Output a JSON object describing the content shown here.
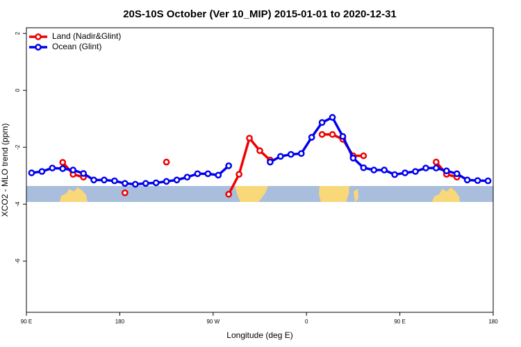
{
  "chart_data": {
    "type": "line",
    "title": "20S-10S October (Ver 10_MIP)   2015-01-01 to 2020-12-31",
    "x_label": "Longitude (deg E)",
    "y_label": "XCO2 - MLO trend (ppm)",
    "xlim": [
      90,
      540
    ],
    "xticks": [
      {
        "value": 90,
        "label": "90 E"
      },
      180,
      {
        "value": 270,
        "label": "90 W"
      },
      {
        "value": 360,
        "label": "0"
      },
      {
        "value": 450,
        "label": "90 E"
      },
      {
        "value": 540,
        "label": "180"
      }
    ],
    "ylim": [
      -7.8,
      2.2
    ],
    "yticks": [
      2,
      0,
      -2,
      -4,
      -6
    ],
    "legend": "upper left",
    "series": [
      {
        "name": "Land (Nadir&Glint)",
        "color": "#ee0000",
        "x": [
          125,
          135,
          145,
          155,
          185,
          195,
          225,
          235,
          285,
          295,
          305,
          315,
          325,
          335,
          375,
          385,
          395,
          405,
          415,
          425,
          485,
          495,
          505
        ],
        "values": [
          -2.53,
          -2.95,
          -3.05,
          null,
          -3.6,
          null,
          -2.52,
          null,
          -3.65,
          -2.95,
          -1.68,
          -2.12,
          -2.45,
          null,
          -1.55,
          -1.55,
          -1.72,
          -2.3,
          -2.3,
          null,
          -2.52,
          -2.95,
          -3.05
        ]
      },
      {
        "name": "Ocean (Glint)",
        "color": "#0000ee",
        "x": [
          95,
          105,
          115,
          125,
          135,
          145,
          155,
          165,
          175,
          185,
          195,
          205,
          215,
          225,
          235,
          245,
          255,
          265,
          275,
          285,
          295,
          305,
          315,
          325,
          335,
          345,
          355,
          365,
          375,
          385,
          395,
          405,
          415,
          425,
          435,
          445,
          455,
          465,
          475,
          485,
          495,
          505,
          515,
          525,
          535
        ],
        "values": [
          -2.9,
          -2.85,
          -2.73,
          -2.75,
          -2.8,
          -2.92,
          -3.15,
          -3.15,
          -3.18,
          -3.27,
          -3.3,
          -3.27,
          -3.25,
          -3.2,
          -3.15,
          -3.05,
          -2.93,
          -2.93,
          -2.98,
          -2.65,
          null,
          null,
          null,
          -2.52,
          -2.32,
          -2.25,
          -2.22,
          -1.65,
          -1.13,
          -0.95,
          -1.62,
          -2.38,
          -2.72,
          -2.8,
          -2.8,
          -2.96,
          -2.9,
          -2.85,
          -2.73,
          -2.73,
          -2.83,
          -2.93,
          -3.15,
          -3.17,
          -3.18
        ]
      }
    ]
  }
}
